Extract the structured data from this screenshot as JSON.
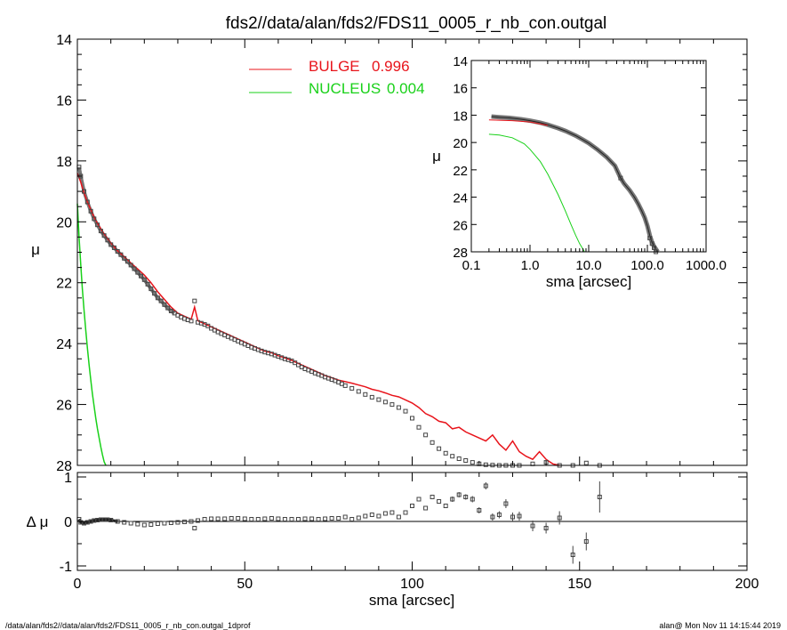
{
  "title": "fds2//data/alan/fds2/FDS11_0005_r_nb_con.outgal",
  "footer_left": "/data/alan/fds2//data/alan/fds2/FDS11_0005_r_nb_con.outgal_1dprof",
  "footer_right": "alan@  Mon Nov 11 14:15:44 2019",
  "colors": {
    "bulge": "#e8141b",
    "nucleus": "#19d119",
    "data": "#555555"
  },
  "chart_data": [
    {
      "name": "main-profile",
      "type": "line",
      "xlim": [
        0,
        200
      ],
      "ylim": [
        28,
        14
      ],
      "ylabel": "μ",
      "yticks": [
        "14",
        "16",
        "18",
        "20",
        "22",
        "24",
        "26",
        "28"
      ],
      "legend": [
        {
          "name": "BULGE",
          "value": "0.996",
          "color": "#e8141b"
        },
        {
          "name": "NUCLEUS",
          "value": "0.004",
          "color": "#19d119"
        }
      ],
      "legend_position": "top-center",
      "data_points": {
        "x": [
          0.5,
          1,
          2,
          3,
          4,
          5,
          6,
          7,
          8,
          9,
          10,
          11,
          12,
          13,
          14,
          15,
          16,
          17,
          18,
          19,
          20,
          21,
          22,
          23,
          24,
          25,
          26,
          27,
          28,
          29,
          30,
          31,
          32,
          33,
          34,
          35,
          36,
          37,
          38,
          39,
          40,
          41,
          42,
          43,
          44,
          45,
          46,
          47,
          48,
          49,
          50,
          51,
          52,
          53,
          54,
          55,
          56,
          57,
          58,
          59,
          60,
          61,
          62,
          63,
          64,
          65,
          66,
          67,
          68,
          69,
          70,
          71,
          72,
          73,
          74,
          75,
          76,
          77,
          78,
          79,
          80,
          82,
          84,
          86,
          88,
          90,
          92,
          94,
          96,
          98,
          100,
          102,
          104,
          106,
          108,
          110,
          112,
          114,
          116,
          118,
          120,
          122,
          124,
          126,
          128,
          130,
          132,
          136,
          140,
          144,
          148,
          152,
          156
        ],
        "y": [
          18.2,
          18.5,
          19.0,
          19.35,
          19.65,
          19.9,
          20.1,
          20.3,
          20.45,
          20.6,
          20.75,
          20.85,
          20.97,
          21.08,
          21.2,
          21.3,
          21.42,
          21.54,
          21.66,
          21.78,
          21.9,
          22.05,
          22.2,
          22.35,
          22.5,
          22.6,
          22.72,
          22.83,
          22.93,
          23.0,
          23.07,
          23.13,
          23.18,
          23.22,
          23.26,
          22.6,
          23.3,
          23.33,
          23.37,
          23.42,
          23.5,
          23.56,
          23.62,
          23.67,
          23.72,
          23.77,
          23.82,
          23.87,
          23.92,
          23.97,
          24.02,
          24.07,
          24.12,
          24.16,
          24.2,
          24.24,
          24.28,
          24.31,
          24.34,
          24.38,
          24.42,
          24.46,
          24.5,
          24.53,
          24.57,
          24.63,
          24.7,
          24.77,
          24.83,
          24.87,
          24.92,
          24.97,
          25.01,
          25.05,
          25.1,
          25.14,
          25.18,
          25.22,
          25.27,
          25.32,
          25.38,
          25.47,
          25.57,
          25.67,
          25.76,
          25.84,
          25.92,
          26.0,
          26.1,
          26.22,
          26.45,
          26.75,
          27.0,
          27.25,
          27.45,
          27.6,
          27.7,
          27.78,
          27.84,
          27.9,
          27.95,
          27.98,
          27.99,
          28.0,
          28.0,
          28.0,
          28.0,
          27.95,
          27.9,
          28.0,
          28.0,
          27.92,
          28.0
        ]
      },
      "bulge_model": {
        "x": [
          0,
          1,
          2,
          3,
          4,
          5,
          6,
          8,
          10,
          12,
          14,
          16,
          18,
          20,
          22,
          24,
          26,
          28,
          30,
          32,
          34,
          35,
          36,
          37,
          38,
          40,
          42,
          44,
          46,
          48,
          50,
          52,
          54,
          56,
          58,
          60,
          62,
          64,
          66,
          68,
          70,
          72,
          74,
          76,
          78,
          80,
          82,
          84,
          86,
          88,
          90,
          92,
          94,
          96,
          98,
          100,
          102,
          104,
          106,
          108,
          110,
          112,
          114,
          116,
          118,
          120,
          122,
          124,
          126,
          128,
          130,
          132,
          134,
          136,
          138,
          140,
          142,
          144
        ],
        "y": [
          18.4,
          18.7,
          19.05,
          19.35,
          19.6,
          19.85,
          20.05,
          20.4,
          20.7,
          20.95,
          21.15,
          21.35,
          21.55,
          21.75,
          22.0,
          22.3,
          22.55,
          22.8,
          23.0,
          23.1,
          23.2,
          22.8,
          23.25,
          23.3,
          23.35,
          23.45,
          23.55,
          23.65,
          23.75,
          23.85,
          23.95,
          24.05,
          24.15,
          24.25,
          24.3,
          24.4,
          24.47,
          24.55,
          24.65,
          24.75,
          24.85,
          24.95,
          25.05,
          25.12,
          25.2,
          25.25,
          25.3,
          25.36,
          25.42,
          25.5,
          25.55,
          25.62,
          25.7,
          25.75,
          25.85,
          25.95,
          26.1,
          26.3,
          26.4,
          26.55,
          26.6,
          26.8,
          26.75,
          26.9,
          27.0,
          27.1,
          27.2,
          27.0,
          27.3,
          27.5,
          27.2,
          27.55,
          27.7,
          27.8,
          27.55,
          27.8,
          27.95,
          28.0
        ]
      },
      "nucleus_model": {
        "x": [
          0,
          0.5,
          1,
          1.5,
          2,
          2.5,
          3,
          3.5,
          4,
          4.5,
          5,
          5.5,
          6,
          6.5,
          7,
          7.5,
          8,
          8.5
        ],
        "y": [
          19.4,
          20.5,
          21.4,
          22.2,
          22.9,
          23.55,
          24.15,
          24.7,
          25.2,
          25.65,
          26.05,
          26.45,
          26.8,
          27.1,
          27.4,
          27.65,
          27.88,
          28.0
        ]
      }
    },
    {
      "name": "inset-log-profile",
      "type": "line",
      "xscale": "log",
      "xlim": [
        0.1,
        1000
      ],
      "ylim": [
        28,
        14
      ],
      "xlabel": "sma [arcsec]",
      "ylabel": "μ",
      "xticks": [
        "0.1",
        "1.0",
        "10.0",
        "100.0",
        "1000.0"
      ],
      "yticks": [
        "14",
        "16",
        "18",
        "20",
        "22",
        "24",
        "26",
        "28"
      ],
      "data_points": {
        "x": [
          0.22,
          0.3,
          0.45,
          0.7,
          1.0,
          1.5,
          2.0,
          3.0,
          4.0,
          6.0,
          8.0,
          10,
          14,
          20,
          28,
          35,
          40,
          50,
          60,
          70,
          80,
          90,
          100,
          110,
          120,
          130,
          140,
          150
        ],
        "y": [
          18.1,
          18.15,
          18.2,
          18.3,
          18.4,
          18.55,
          18.7,
          18.95,
          19.15,
          19.5,
          19.8,
          20.05,
          20.5,
          21.05,
          21.7,
          22.6,
          23.0,
          23.5,
          24.0,
          24.5,
          25.0,
          25.5,
          26.1,
          26.8,
          27.3,
          27.6,
          27.8,
          28.0
        ]
      },
      "bulge_model": {
        "x": [
          0.2,
          0.5,
          1.0,
          2.0,
          4.0,
          8.0,
          14,
          20,
          30,
          40,
          60,
          80,
          100,
          130,
          144
        ],
        "y": [
          18.35,
          18.4,
          18.5,
          18.75,
          19.2,
          19.85,
          20.5,
          21.1,
          21.9,
          22.9,
          24.0,
          25.0,
          26.0,
          27.3,
          28.0
        ]
      },
      "nucleus_model": {
        "x": [
          0.2,
          0.3,
          0.5,
          0.8,
          1.0,
          1.5,
          2.0,
          3.0,
          4.0,
          5.0,
          6.0,
          7.0,
          8.5
        ],
        "y": [
          19.4,
          19.45,
          19.65,
          20.1,
          20.5,
          21.4,
          22.3,
          23.8,
          25.0,
          26.0,
          26.8,
          27.4,
          28.0
        ]
      }
    },
    {
      "name": "residuals",
      "type": "scatter",
      "xlim": [
        0,
        200
      ],
      "ylim": [
        -1.1,
        1.1
      ],
      "xlabel": "sma [arcsec]",
      "ylabel": "Δ μ",
      "xticks": [
        "0",
        "50",
        "100",
        "150",
        "200"
      ],
      "yticks": [
        "-1",
        "0",
        "1"
      ],
      "x": [
        0.5,
        1,
        2,
        3,
        4,
        5,
        6,
        7,
        8,
        9,
        10,
        12,
        14,
        16,
        18,
        20,
        22,
        24,
        26,
        28,
        30,
        32,
        34,
        35,
        36,
        38,
        40,
        42,
        44,
        46,
        48,
        50,
        52,
        54,
        56,
        58,
        60,
        62,
        64,
        66,
        68,
        70,
        72,
        74,
        76,
        78,
        80,
        82,
        84,
        86,
        88,
        90,
        92,
        94,
        96,
        98,
        100,
        102,
        104,
        106,
        108,
        110,
        112,
        114,
        116,
        118,
        120,
        122,
        124,
        126,
        128,
        130,
        132,
        136,
        140,
        144,
        148,
        152,
        156
      ],
      "y": [
        0.05,
        -0.02,
        -0.04,
        -0.02,
        0.0,
        0.02,
        0.03,
        0.04,
        0.04,
        0.04,
        0.03,
        0.0,
        -0.02,
        -0.04,
        -0.06,
        -0.08,
        -0.07,
        -0.05,
        -0.04,
        -0.03,
        -0.02,
        -0.01,
        0.0,
        -0.15,
        0.02,
        0.05,
        0.06,
        0.06,
        0.06,
        0.07,
        0.07,
        0.06,
        0.05,
        0.05,
        0.06,
        0.07,
        0.06,
        0.05,
        0.05,
        0.05,
        0.06,
        0.06,
        0.05,
        0.06,
        0.07,
        0.07,
        0.1,
        0.05,
        0.08,
        0.12,
        0.15,
        0.12,
        0.18,
        0.2,
        0.1,
        0.2,
        0.35,
        0.5,
        0.3,
        0.55,
        0.45,
        0.35,
        0.5,
        0.6,
        0.55,
        0.5,
        0.25,
        0.8,
        0.1,
        0.15,
        0.4,
        0.1,
        0.12,
        -0.1,
        -0.15,
        0.08,
        -0.75,
        -0.45,
        0.55
      ],
      "yerr": [
        0.02,
        0.02,
        0.02,
        0.02,
        0.02,
        0.02,
        0.02,
        0.02,
        0.02,
        0.02,
        0.02,
        0.02,
        0.02,
        0.02,
        0.02,
        0.02,
        0.02,
        0.02,
        0.02,
        0.02,
        0.02,
        0.02,
        0.02,
        0.02,
        0.02,
        0.02,
        0.02,
        0.02,
        0.02,
        0.02,
        0.02,
        0.02,
        0.02,
        0.02,
        0.02,
        0.02,
        0.02,
        0.02,
        0.02,
        0.02,
        0.02,
        0.02,
        0.02,
        0.02,
        0.02,
        0.02,
        0.02,
        0.02,
        0.02,
        0.02,
        0.02,
        0.02,
        0.03,
        0.03,
        0.03,
        0.03,
        0.04,
        0.04,
        0.04,
        0.05,
        0.05,
        0.05,
        0.06,
        0.06,
        0.06,
        0.07,
        0.07,
        0.08,
        0.08,
        0.08,
        0.1,
        0.1,
        0.1,
        0.12,
        0.12,
        0.15,
        0.2,
        0.2,
        0.35
      ]
    }
  ]
}
